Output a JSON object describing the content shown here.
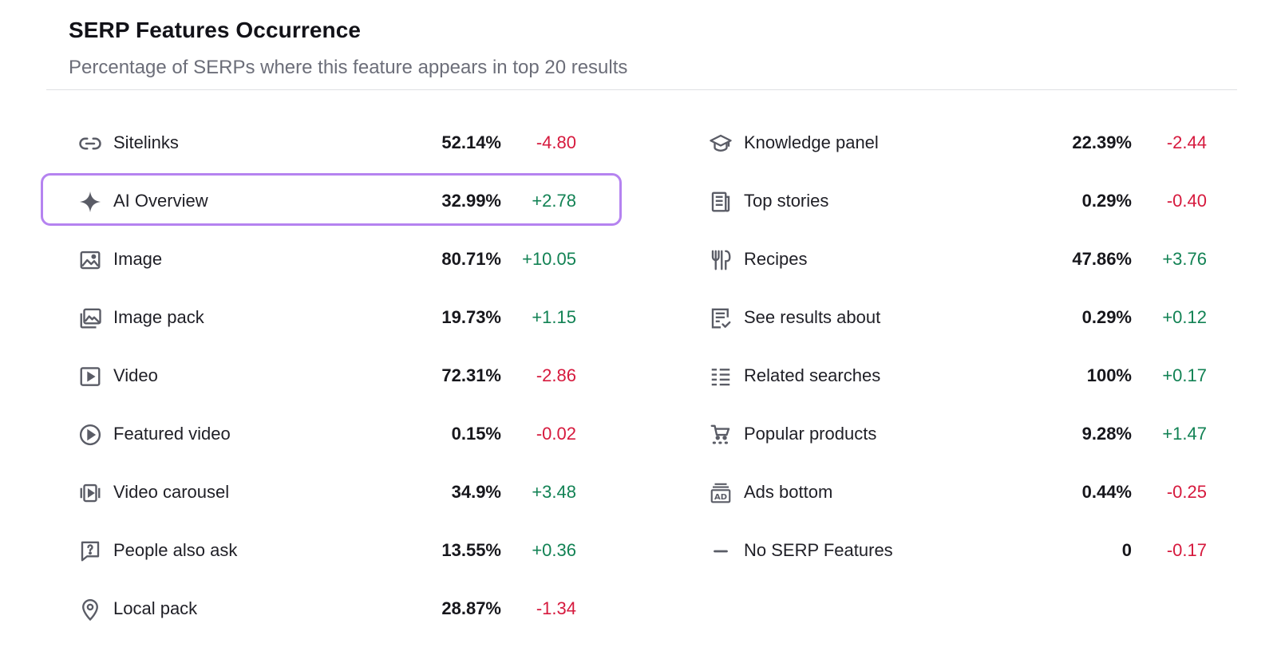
{
  "header": {
    "title": "SERP Features Occurrence",
    "subtitle": "Percentage of SERPs where this feature appears in top 20 results"
  },
  "colors": {
    "negative": "#d6193d",
    "positive": "#128254",
    "highlight_border": "#b583f0"
  },
  "highlighted_feature": "AI Overview",
  "left_features": [
    {
      "icon": "link-icon",
      "label": "Sitelinks",
      "pct": "52.14%",
      "delta": "-4.80",
      "trend": "neg"
    },
    {
      "icon": "sparkle-icon",
      "label": "AI Overview",
      "pct": "32.99%",
      "delta": "+2.78",
      "trend": "pos"
    },
    {
      "icon": "image-icon",
      "label": "Image",
      "pct": "80.71%",
      "delta": "+10.05",
      "trend": "pos"
    },
    {
      "icon": "image-pack-icon",
      "label": "Image pack",
      "pct": "19.73%",
      "delta": "+1.15",
      "trend": "pos"
    },
    {
      "icon": "video-icon",
      "label": "Video",
      "pct": "72.31%",
      "delta": "-2.86",
      "trend": "neg"
    },
    {
      "icon": "play-circle-icon",
      "label": "Featured video",
      "pct": "0.15%",
      "delta": "-0.02",
      "trend": "neg"
    },
    {
      "icon": "video-carousel-icon",
      "label": "Video carousel",
      "pct": "34.9%",
      "delta": "+3.48",
      "trend": "pos"
    },
    {
      "icon": "question-bubble-icon",
      "label": "People also ask",
      "pct": "13.55%",
      "delta": "+0.36",
      "trend": "pos"
    },
    {
      "icon": "map-pin-icon",
      "label": "Local pack",
      "pct": "28.87%",
      "delta": "-1.34",
      "trend": "neg"
    }
  ],
  "right_features": [
    {
      "icon": "graduation-cap-icon",
      "label": "Knowledge panel",
      "pct": "22.39%",
      "delta": "-2.44",
      "trend": "neg"
    },
    {
      "icon": "newspaper-icon",
      "label": "Top stories",
      "pct": "0.29%",
      "delta": "-0.40",
      "trend": "neg"
    },
    {
      "icon": "fork-knife-icon",
      "label": "Recipes",
      "pct": "47.86%",
      "delta": "+3.76",
      "trend": "pos"
    },
    {
      "icon": "checklist-icon",
      "label": "See results about",
      "pct": "0.29%",
      "delta": "+0.12",
      "trend": "pos"
    },
    {
      "icon": "list-icon",
      "label": "Related searches",
      "pct": "100%",
      "delta": "+0.17",
      "trend": "pos"
    },
    {
      "icon": "shopping-cart-icon",
      "label": "Popular products",
      "pct": "9.28%",
      "delta": "+1.47",
      "trend": "pos"
    },
    {
      "icon": "ad-icon",
      "label": "Ads bottom",
      "pct": "0.44%",
      "delta": "-0.25",
      "trend": "neg"
    },
    {
      "icon": "dash-icon",
      "label": "No SERP Features",
      "pct": "0",
      "delta": "-0.17",
      "trend": "neg"
    }
  ]
}
